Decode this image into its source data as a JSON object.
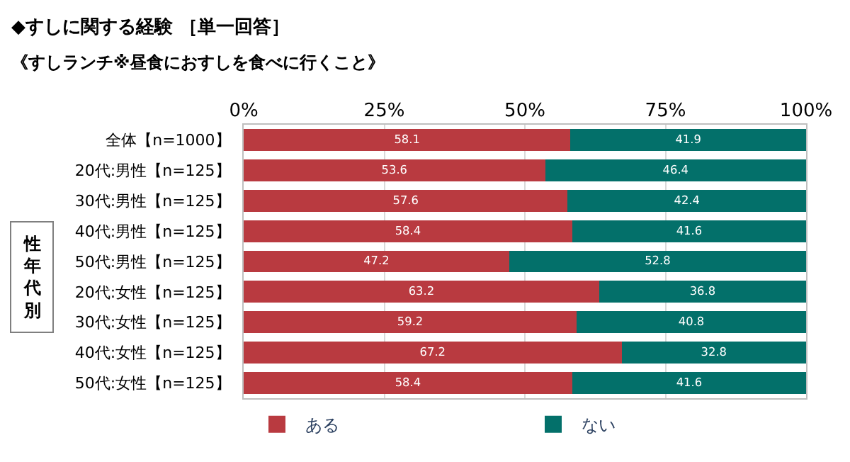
{
  "chart_data": {
    "type": "bar",
    "orientation": "horizontal",
    "stacked": true,
    "title": "◆すしに関する経験 ［単一回答］",
    "subtitle": "《すしランチ※昼食におすしを食べに行くこと》",
    "categories": [
      "全体【n=1000】",
      "20代:男性【n=125】",
      "30代:男性【n=125】",
      "40代:男性【n=125】",
      "50代:男性【n=125】",
      "20代:女性【n=125】",
      "30代:女性【n=125】",
      "40代:女性【n=125】",
      "50代:女性【n=125】"
    ],
    "series": [
      {
        "name": "ある",
        "color": "#b93a40",
        "values": [
          58.1,
          53.6,
          57.6,
          58.4,
          47.2,
          63.2,
          59.2,
          67.2,
          58.4
        ]
      },
      {
        "name": "ない",
        "color": "#03706a",
        "values": [
          41.9,
          46.4,
          42.4,
          41.6,
          52.8,
          36.8,
          40.8,
          32.8,
          41.6
        ]
      }
    ],
    "xlim": [
      0,
      100
    ],
    "xticks": [
      {
        "value": 0,
        "label": "0%"
      },
      {
        "value": 25,
        "label": "25%"
      },
      {
        "value": 50,
        "label": "50%"
      },
      {
        "value": 75,
        "label": "75%"
      },
      {
        "value": 100,
        "label": "100%"
      }
    ],
    "grid": "x",
    "data_labels": true,
    "legend": "bottom",
    "annotations": [
      "性年代別"
    ]
  }
}
